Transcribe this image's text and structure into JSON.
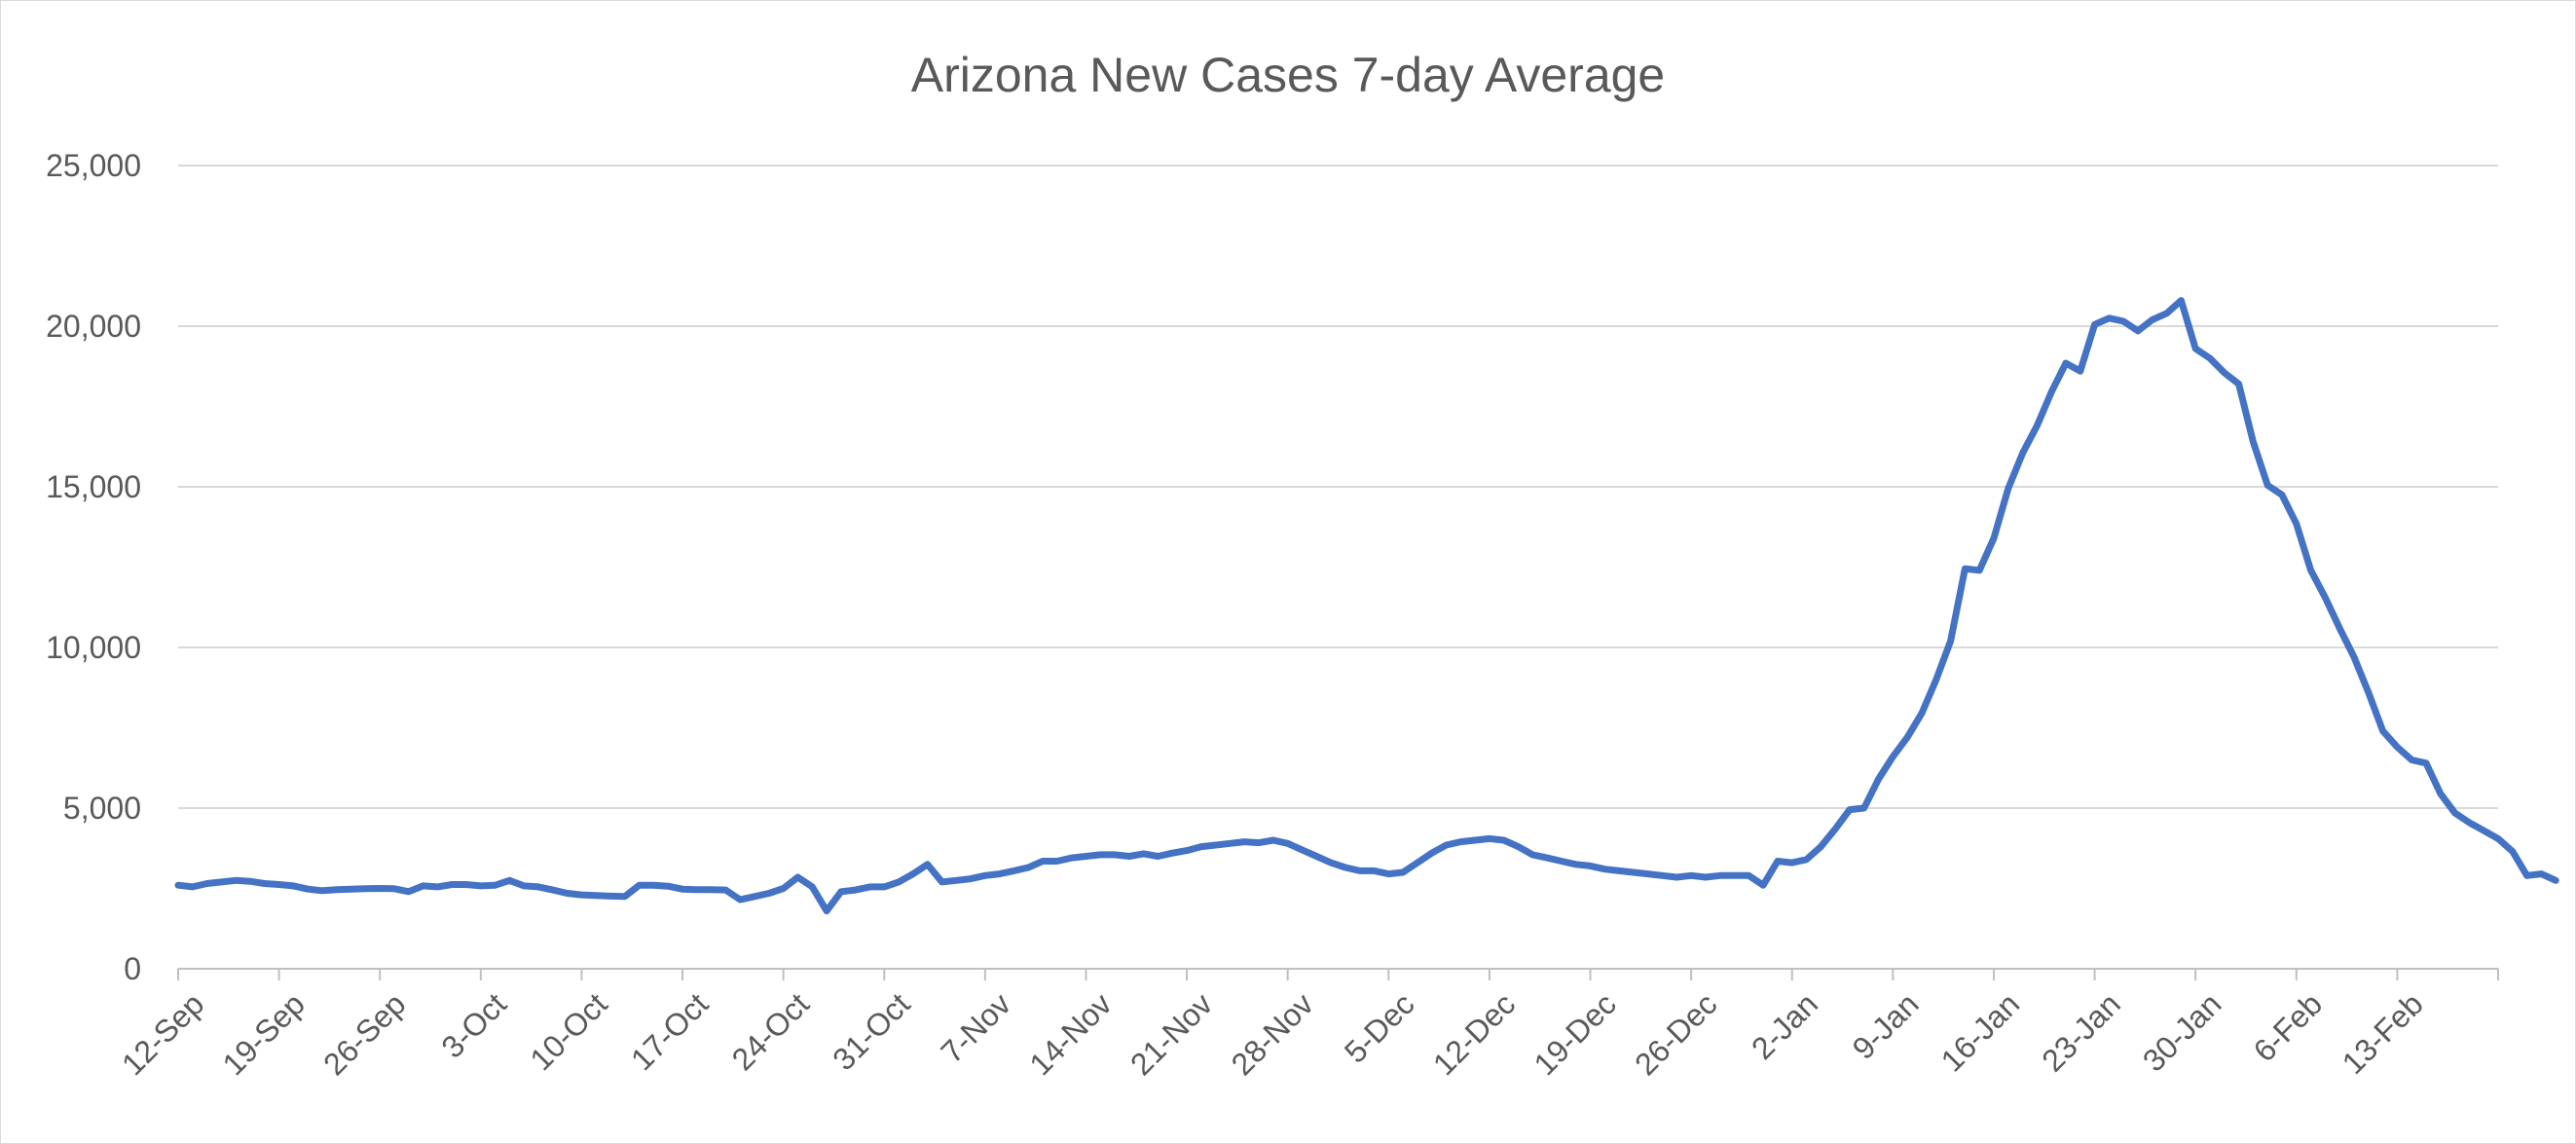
{
  "chart_data": {
    "type": "line",
    "title": "Arizona New Cases 7-day Average",
    "xlabel": "",
    "ylabel": "",
    "ylim": [
      0,
      25000
    ],
    "grid": true,
    "legend": "none",
    "line_color": "#4472C4",
    "y_ticks": [
      {
        "value": 0,
        "label": "0"
      },
      {
        "value": 5000,
        "label": "5,000"
      },
      {
        "value": 10000,
        "label": "10,000"
      },
      {
        "value": 15000,
        "label": "15,000"
      },
      {
        "value": 20000,
        "label": "20,000"
      },
      {
        "value": 25000,
        "label": "25,000"
      }
    ],
    "x_ticks": [
      {
        "date": "2021-09-12",
        "label": "12-Sep"
      },
      {
        "date": "2021-09-19",
        "label": "19-Sep"
      },
      {
        "date": "2021-09-26",
        "label": "26-Sep"
      },
      {
        "date": "2021-10-03",
        "label": "3-Oct"
      },
      {
        "date": "2021-10-10",
        "label": "10-Oct"
      },
      {
        "date": "2021-10-17",
        "label": "17-Oct"
      },
      {
        "date": "2021-10-24",
        "label": "24-Oct"
      },
      {
        "date": "2021-10-31",
        "label": "31-Oct"
      },
      {
        "date": "2021-11-07",
        "label": "7-Nov"
      },
      {
        "date": "2021-11-14",
        "label": "14-Nov"
      },
      {
        "date": "2021-11-21",
        "label": "21-Nov"
      },
      {
        "date": "2021-11-28",
        "label": "28-Nov"
      },
      {
        "date": "2021-12-05",
        "label": "5-Dec"
      },
      {
        "date": "2021-12-12",
        "label": "12-Dec"
      },
      {
        "date": "2021-12-19",
        "label": "19-Dec"
      },
      {
        "date": "2021-12-26",
        "label": "26-Dec"
      },
      {
        "date": "2022-01-02",
        "label": "2-Jan"
      },
      {
        "date": "2022-01-09",
        "label": "9-Jan"
      },
      {
        "date": "2022-01-16",
        "label": "16-Jan"
      },
      {
        "date": "2022-01-23",
        "label": "23-Jan"
      },
      {
        "date": "2022-01-30",
        "label": "30-Jan"
      },
      {
        "date": "2022-02-06",
        "label": "6-Feb"
      },
      {
        "date": "2022-02-13",
        "label": "13-Feb"
      }
    ],
    "series": [
      {
        "x_start": "2021-09-12",
        "x_end": "2022-02-20",
        "values": [
          2600,
          2550,
          2650,
          2700,
          2750,
          2720,
          2650,
          2620,
          2580,
          2480,
          2430,
          2460,
          2480,
          2490,
          2500,
          2490,
          2400,
          2580,
          2550,
          2620,
          2620,
          2580,
          2600,
          2750,
          2580,
          2550,
          2450,
          2350,
          2300,
          2280,
          2260,
          2250,
          2600,
          2600,
          2570,
          2480,
          2460,
          2460,
          2450,
          2150,
          2250,
          2350,
          2500,
          2850,
          2550,
          1800,
          2400,
          2450,
          2550,
          2550,
          2700,
          2950,
          3250,
          2700,
          2750,
          2800,
          2900,
          2950,
          3050,
          3150,
          3350,
          3350,
          3450,
          3500,
          3550,
          3550,
          3500,
          3580,
          3500,
          3600,
          3680,
          3800,
          3850,
          3900,
          3950,
          3920,
          4000,
          3900,
          3700,
          3500,
          3300,
          3150,
          3050,
          3050,
          2950,
          3000,
          3300,
          3600,
          3850,
          3950,
          4000,
          4050,
          4000,
          3800,
          3550,
          3450,
          3350,
          3250,
          3200,
          3100,
          3050,
          3000,
          2950,
          2900,
          2850,
          2900,
          2850,
          2900,
          2900,
          2900,
          2600,
          3350,
          3300,
          3400,
          3800,
          4350,
          4950,
          5000,
          5900,
          6600,
          7200,
          7950,
          9000,
          10200,
          12450,
          12400,
          13400,
          14950,
          16050,
          16900,
          17950,
          18850,
          18600,
          20050,
          20250,
          20150,
          19850,
          20200,
          20400,
          20800,
          19300,
          19000,
          18550,
          18200,
          16400,
          15050,
          14750,
          13850,
          12400,
          11550,
          10600,
          9700,
          8600,
          7400,
          6900,
          6500,
          6400,
          5450,
          4850,
          4550,
          4300,
          4050,
          3650,
          2900,
          2950,
          2750
        ]
      }
    ]
  }
}
